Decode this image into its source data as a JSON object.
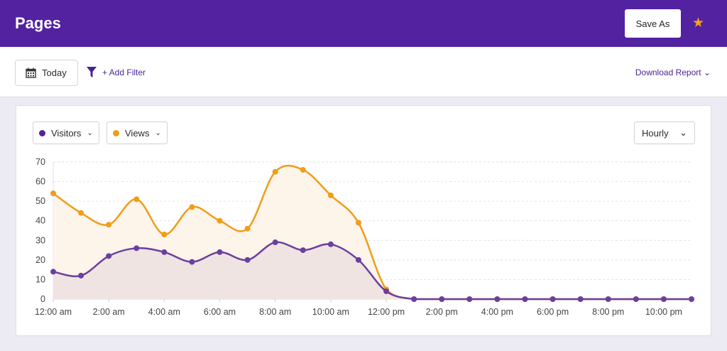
{
  "header": {
    "title": "Pages",
    "save_as": "Save As",
    "star_icon": "star-icon",
    "colors": {
      "bg": "#5222a1",
      "star": "#f5a11a"
    }
  },
  "toolbar": {
    "date_label": "Today",
    "add_filter": "+ Add Filter",
    "download": "Download Report"
  },
  "chart_controls": {
    "visitors": "Visitors",
    "views": "Views",
    "interval": "Hourly"
  },
  "chart_data": {
    "type": "area",
    "ylim": [
      0,
      70
    ],
    "yticks": [
      "0",
      "10",
      "20",
      "30",
      "40",
      "50",
      "60",
      "70"
    ],
    "grid": true,
    "x": [
      "12:00 am",
      "1:00 am",
      "2:00 am",
      "3:00 am",
      "4:00 am",
      "5:00 am",
      "6:00 am",
      "7:00 am",
      "8:00 am",
      "9:00 am",
      "10:00 am",
      "11:00 am",
      "12:00 pm",
      "1:00 pm",
      "2:00 pm",
      "3:00 pm",
      "4:00 pm",
      "5:00 pm",
      "6:00 pm",
      "7:00 pm",
      "8:00 pm",
      "9:00 pm",
      "10:00 pm",
      "11:00 pm"
    ],
    "xtick_labels": [
      "12:00 am",
      "2:00 am",
      "4:00 am",
      "6:00 am",
      "8:00 am",
      "10:00 am",
      "12:00 pm",
      "2:00 pm",
      "4:00 pm",
      "6:00 pm",
      "8:00 pm",
      "10:00 pm"
    ],
    "series": [
      {
        "name": "Views",
        "color": "#f09d1a",
        "fill": "#fdf3e8",
        "values": [
          54,
          44,
          38,
          51,
          33,
          47,
          40,
          36,
          65,
          66,
          53,
          39,
          5,
          0,
          0,
          0,
          0,
          0,
          0,
          0,
          0,
          0,
          0,
          0
        ]
      },
      {
        "name": "Visitors",
        "color": "#6b3fa0",
        "fill": "#ede2e0",
        "values": [
          14,
          12,
          22,
          26,
          24,
          19,
          24,
          20,
          29,
          25,
          28,
          20,
          4,
          0,
          0,
          0,
          0,
          0,
          0,
          0,
          0,
          0,
          0,
          0
        ]
      }
    ]
  }
}
